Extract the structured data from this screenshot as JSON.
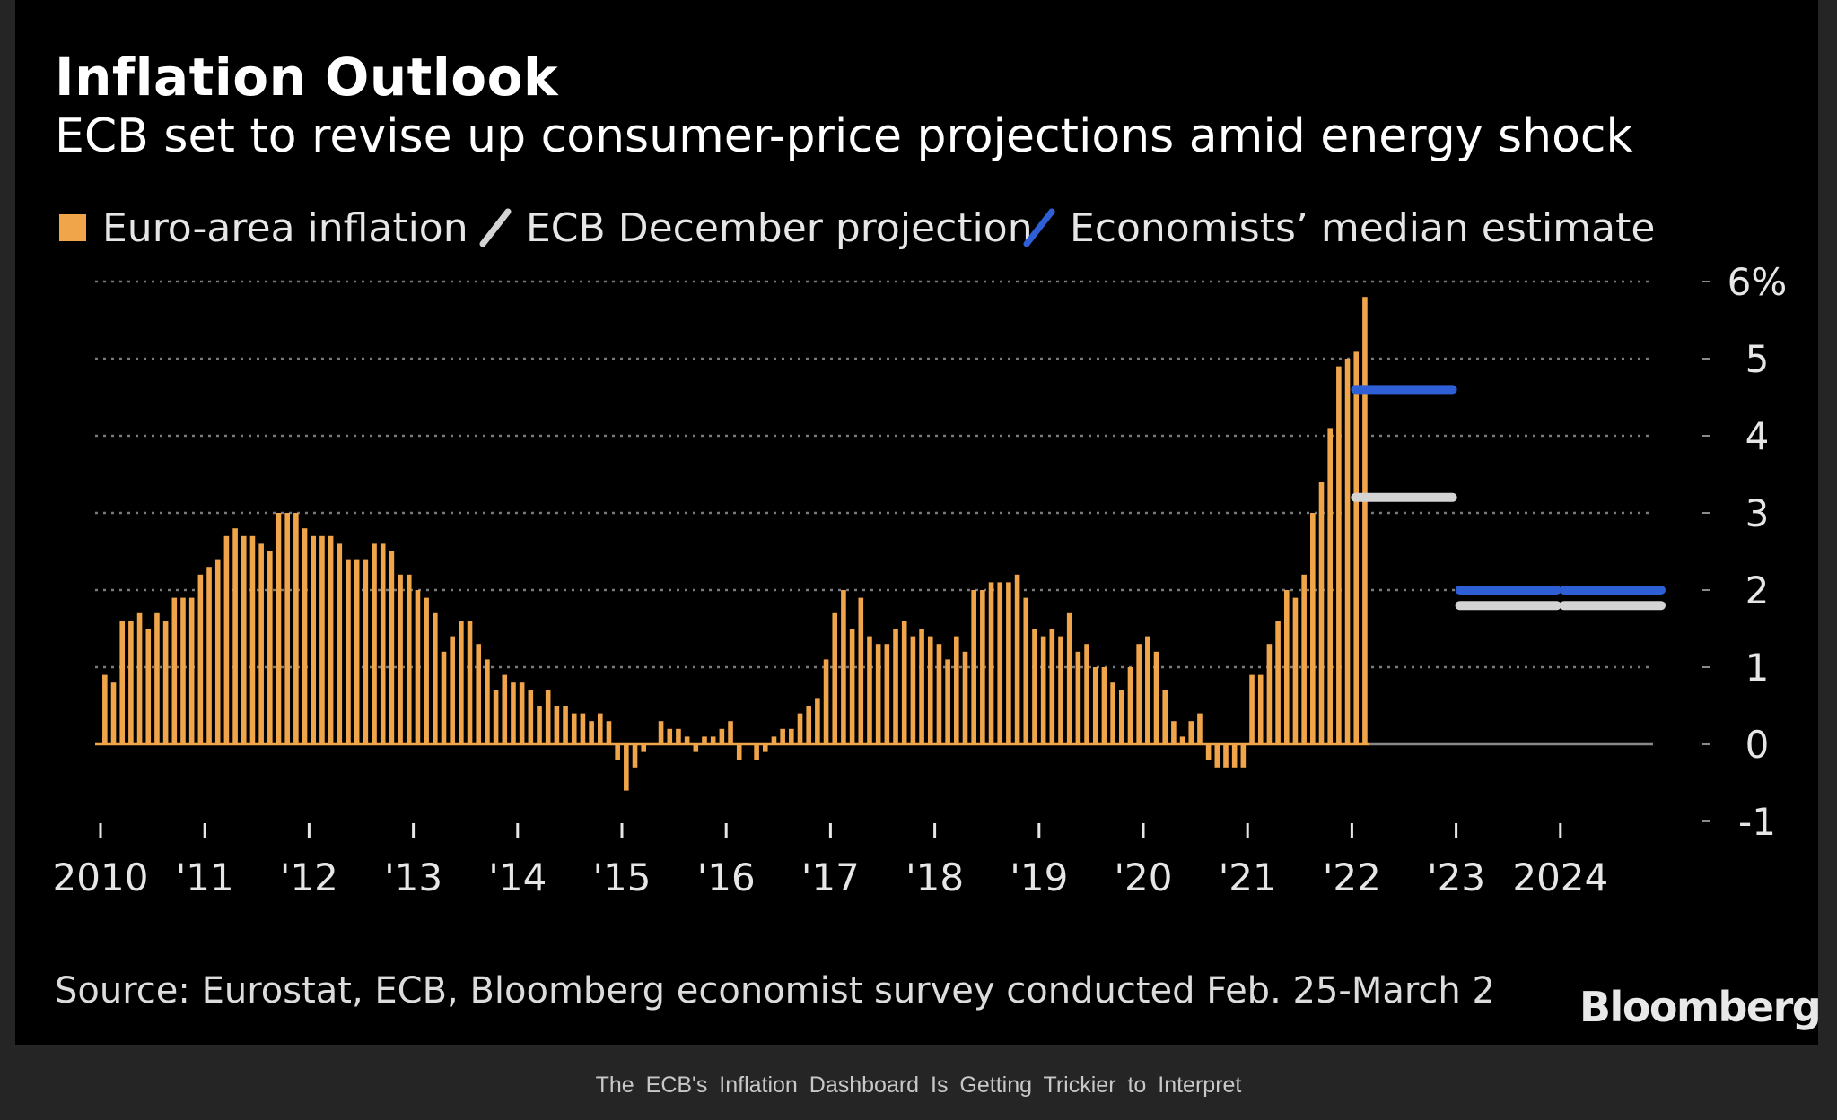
{
  "page_caption": "The ECB's Inflation Dashboard Is Getting Trickier to Interpret",
  "brand": "Bloomberg",
  "chart_data": {
    "type": "bar",
    "title": "Inflation Outlook",
    "subtitle": "ECB set to revise up consumer-price projections amid energy shock",
    "source": "Source: Eurostat, ECB, Bloomberg economist survey conducted Feb. 25-March 2",
    "legend": [
      {
        "label": "Euro-area inflation",
        "color": "#F0A54A",
        "style": "square"
      },
      {
        "label": "ECB December projection",
        "color": "#D4D4D4",
        "style": "line"
      },
      {
        "label": "Economists’ median estimate",
        "color": "#2F5FD6",
        "style": "line"
      }
    ],
    "legend_position": "top-left",
    "ylim": [
      -1,
      6
    ],
    "y_ticks": [
      {
        "value": 6,
        "label": "6%"
      },
      {
        "value": 5,
        "label": "5"
      },
      {
        "value": 4,
        "label": "4"
      },
      {
        "value": 3,
        "label": "3"
      },
      {
        "value": 2,
        "label": "2"
      },
      {
        "value": 1,
        "label": "1"
      },
      {
        "value": 0,
        "label": "0"
      },
      {
        "value": -1,
        "label": "-1"
      }
    ],
    "x_ticks": [
      {
        "year": 2010,
        "label": "2010"
      },
      {
        "year": 2011,
        "label": "'11"
      },
      {
        "year": 2012,
        "label": "'12"
      },
      {
        "year": 2013,
        "label": "'13"
      },
      {
        "year": 2014,
        "label": "'14"
      },
      {
        "year": 2015,
        "label": "'15"
      },
      {
        "year": 2016,
        "label": "'16"
      },
      {
        "year": 2017,
        "label": "'17"
      },
      {
        "year": 2018,
        "label": "'18"
      },
      {
        "year": 2019,
        "label": "'19"
      },
      {
        "year": 2020,
        "label": "'20"
      },
      {
        "year": 2021,
        "label": "'21"
      },
      {
        "year": 2022,
        "label": "'22"
      },
      {
        "year": 2023,
        "label": "'23"
      },
      {
        "year": 2024,
        "label": "2024"
      }
    ],
    "grid": true,
    "series": [
      {
        "name": "Euro-area inflation",
        "start": "2010-01",
        "frequency": "monthly",
        "values": [
          0.9,
          0.8,
          1.6,
          1.6,
          1.7,
          1.5,
          1.7,
          1.6,
          1.9,
          1.9,
          1.9,
          2.2,
          2.3,
          2.4,
          2.7,
          2.8,
          2.7,
          2.7,
          2.6,
          2.5,
          3.0,
          3.0,
          3.0,
          2.8,
          2.7,
          2.7,
          2.7,
          2.6,
          2.4,
          2.4,
          2.4,
          2.6,
          2.6,
          2.5,
          2.2,
          2.2,
          2.0,
          1.9,
          1.7,
          1.2,
          1.4,
          1.6,
          1.6,
          1.3,
          1.1,
          0.7,
          0.9,
          0.8,
          0.8,
          0.7,
          0.5,
          0.7,
          0.5,
          0.5,
          0.4,
          0.4,
          0.3,
          0.4,
          0.3,
          -0.2,
          -0.6,
          -0.3,
          -0.1,
          0.0,
          0.3,
          0.2,
          0.2,
          0.1,
          -0.1,
          0.1,
          0.1,
          0.2,
          0.3,
          -0.2,
          0.0,
          -0.2,
          -0.1,
          0.1,
          0.2,
          0.2,
          0.4,
          0.5,
          0.6,
          1.1,
          1.7,
          2.0,
          1.5,
          1.9,
          1.4,
          1.3,
          1.3,
          1.5,
          1.6,
          1.4,
          1.5,
          1.4,
          1.3,
          1.1,
          1.4,
          1.2,
          2.0,
          2.0,
          2.1,
          2.1,
          2.1,
          2.2,
          1.9,
          1.5,
          1.4,
          1.5,
          1.4,
          1.7,
          1.2,
          1.3,
          1.0,
          1.0,
          0.8,
          0.7,
          1.0,
          1.3,
          1.4,
          1.2,
          0.7,
          0.3,
          0.1,
          0.3,
          0.4,
          -0.2,
          -0.3,
          -0.3,
          -0.3,
          -0.3,
          0.9,
          0.9,
          1.3,
          1.6,
          2.0,
          1.9,
          2.2,
          3.0,
          3.4,
          4.1,
          4.9,
          5.0,
          5.1,
          5.8
        ]
      },
      {
        "name": "ECB December projection",
        "values": [
          {
            "period": "2022",
            "value": 3.2
          },
          {
            "period": "2023",
            "value": 1.8
          },
          {
            "period": "2024",
            "value": 1.8
          }
        ]
      },
      {
        "name": "Economists’ median estimate",
        "values": [
          {
            "period": "2022",
            "value": 4.6
          },
          {
            "period": "2023",
            "value": 2.0
          },
          {
            "period": "2024",
            "value": 2.0
          }
        ]
      }
    ]
  }
}
